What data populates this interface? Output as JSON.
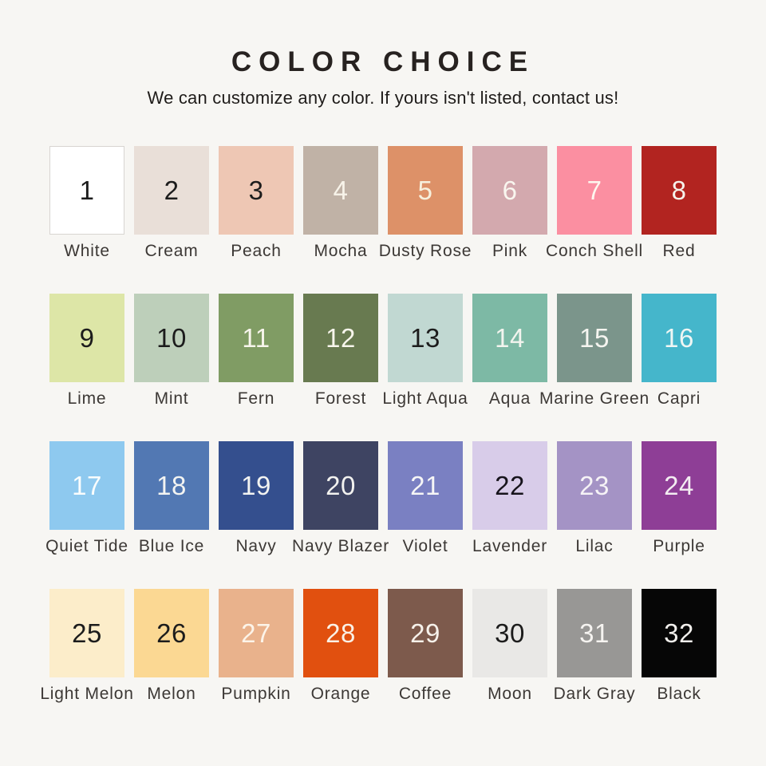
{
  "page": {
    "background": "#f7f6f3",
    "title": "COLOR CHOICE",
    "subtitle": "We can customize any color. If yours isn't listed, contact us!"
  },
  "grid": {
    "columns": 8,
    "rows": 4
  },
  "text_colors": {
    "dark": "#1c1c1c",
    "light": "#f7f3e9"
  },
  "swatches": [
    {
      "number": "1",
      "name": "White",
      "color": "#ffffff",
      "number_color": "#1c1c1c",
      "border": "#d8d5d1"
    },
    {
      "number": "2",
      "name": "Cream",
      "color": "#e9dfd8",
      "number_color": "#1c1c1c"
    },
    {
      "number": "3",
      "name": "Peach",
      "color": "#eec7b4",
      "number_color": "#1c1c1c"
    },
    {
      "number": "4",
      "name": "Mocha",
      "color": "#c0b2a6",
      "number_color": "#f7f3e9"
    },
    {
      "number": "5",
      "name": "Dusty Rose",
      "color": "#dd9168",
      "number_color": "#f7f0dd"
    },
    {
      "number": "6",
      "name": "Pink",
      "color": "#d3a9ae",
      "number_color": "#f9f6ef"
    },
    {
      "number": "7",
      "name": "Conch Shell",
      "color": "#fb8fa1",
      "number_color": "#fdf6ee"
    },
    {
      "number": "8",
      "name": "Red",
      "color": "#b22420",
      "number_color": "#f6f2ec"
    },
    {
      "number": "9",
      "name": "Lime",
      "color": "#dde6a7",
      "number_color": "#1c1c1c"
    },
    {
      "number": "10",
      "name": "Mint",
      "color": "#bdcfba",
      "number_color": "#1c1c1c"
    },
    {
      "number": "11",
      "name": "Fern",
      "color": "#809c64",
      "number_color": "#f7f5ec"
    },
    {
      "number": "12",
      "name": "Forest",
      "color": "#687a50",
      "number_color": "#f7f5ec"
    },
    {
      "number": "13",
      "name": "Light Aqua",
      "color": "#c1d8d2",
      "number_color": "#1c1c1c"
    },
    {
      "number": "14",
      "name": "Aqua",
      "color": "#7db9a5",
      "number_color": "#f2f4ee"
    },
    {
      "number": "15",
      "name": "Marine Green",
      "color": "#7b958b",
      "number_color": "#f5f5f0"
    },
    {
      "number": "16",
      "name": "Capri",
      "color": "#45b6cb",
      "number_color": "#eff6f4"
    },
    {
      "number": "17",
      "name": "Quiet Tide",
      "color": "#8ec9ef",
      "number_color": "#fafdfd"
    },
    {
      "number": "18",
      "name": "Blue Ice",
      "color": "#5278b3",
      "number_color": "#f3f4f2"
    },
    {
      "number": "19",
      "name": "Navy",
      "color": "#344f8e",
      "number_color": "#f2f3f1"
    },
    {
      "number": "20",
      "name": "Navy Blazer",
      "color": "#3e4462",
      "number_color": "#f2f2ef"
    },
    {
      "number": "21",
      "name": "Violet",
      "color": "#7a80c2",
      "number_color": "#f6f6f6"
    },
    {
      "number": "22",
      "name": "Lavender",
      "color": "#d8cce9",
      "number_color": "#17141c"
    },
    {
      "number": "23",
      "name": "Lilac",
      "color": "#a493c5",
      "number_color": "#f6f3f6"
    },
    {
      "number": "24",
      "name": "Purple",
      "color": "#8e3e96",
      "number_color": "#f3ecf1"
    },
    {
      "number": "25",
      "name": "Light Melon",
      "color": "#fcedca",
      "number_color": "#1c1c1c"
    },
    {
      "number": "26",
      "name": "Melon",
      "color": "#fbd893",
      "number_color": "#1c1c1c"
    },
    {
      "number": "27",
      "name": "Pumpkin",
      "color": "#e9b28c",
      "number_color": "#fcf4e9"
    },
    {
      "number": "28",
      "name": "Orange",
      "color": "#e1500f",
      "number_color": "#faf1e6"
    },
    {
      "number": "29",
      "name": "Coffee",
      "color": "#7d5a4c",
      "number_color": "#f6f1ea"
    },
    {
      "number": "30",
      "name": "Moon",
      "color": "#e9e8e6",
      "number_color": "#1c1c1c"
    },
    {
      "number": "31",
      "name": "Dark Gray",
      "color": "#989795",
      "number_color": "#f6f4f1"
    },
    {
      "number": "32",
      "name": "Black",
      "color": "#060606",
      "number_color": "#f1efec"
    }
  ]
}
